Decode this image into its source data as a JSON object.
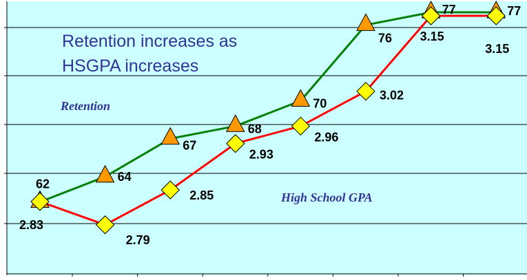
{
  "chart_data": {
    "type": "line",
    "x": [
      1,
      2,
      3,
      4,
      5,
      6,
      7,
      8
    ],
    "series": [
      {
        "key": "retention",
        "values": [
          62,
          64,
          67,
          68,
          70,
          76,
          77,
          77
        ],
        "labels": [
          "62",
          "64",
          "67",
          "68",
          "70",
          "76",
          "77",
          "77"
        ],
        "color": "#008000",
        "marker": "triangle",
        "marker_color": "#FF9900"
      },
      {
        "key": "hsgpa",
        "values": [
          2.83,
          2.79,
          2.85,
          2.93,
          2.96,
          3.02,
          3.15,
          3.15
        ],
        "labels": [
          "2.83",
          "2.79",
          "2.85",
          "2.93",
          "2.96",
          "3.02",
          "3.15",
          "3.15"
        ],
        "color": "#FF0000",
        "marker": "diamond",
        "marker_color": "#FFFF00"
      }
    ],
    "annotations": {
      "headline_line1": "Retention increases as",
      "headline_line2": "HSGPA increases",
      "retention_label": "Retention",
      "gpa_label": "High School GPA"
    },
    "grid": true,
    "background_color": "#CCFFFF"
  }
}
